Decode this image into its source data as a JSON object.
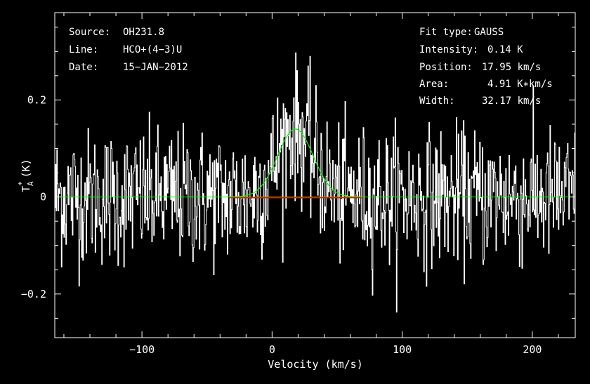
{
  "chart_data": {
    "type": "line",
    "title": "",
    "xlabel": "Velocity (km/s)",
    "ylabel_main": "T",
    "ylabel_sub": "A",
    "ylabel_sup": "*",
    "ylabel_unit": "(K)",
    "xlim": [
      -167,
      233
    ],
    "ylim": [
      -0.29,
      0.38
    ],
    "x_ticks": [
      -100,
      0,
      100,
      200
    ],
    "y_ticks": [
      -0.2,
      0,
      0.2
    ],
    "x_tick_labels": [
      "−100",
      "0",
      "100",
      "200"
    ],
    "y_tick_labels": [
      "−0.2",
      "0",
      "0.2"
    ],
    "grid": false,
    "info_left": [
      {
        "key": "Source:",
        "value": "OH231.8"
      },
      {
        "key": "Line:",
        "value": "HCO+(4−3)U"
      },
      {
        "key": "Date:",
        "value": "15−JAN−2012"
      }
    ],
    "info_right": [
      {
        "key": "Fit type:",
        "value": "GAUSS"
      },
      {
        "key": "Intensity:",
        "value": "0.14 K"
      },
      {
        "key": "Position:",
        "value": "17.95 km/s"
      },
      {
        "key": "Area:",
        "value": "4.91 K∗km/s"
      },
      {
        "key": "Width:",
        "value": "32.17 km/s"
      }
    ],
    "fit": {
      "amplitude": 0.14,
      "center": 17.95,
      "fwhm": 32.17
    },
    "fit_window": [
      -33,
      70
    ],
    "noise_rms": 0.07,
    "channel_width": 0.5,
    "colors": {
      "spectrum": "#ffffff",
      "fit": "#00ff00",
      "baseline": "#00ff00",
      "window": "#ff0000",
      "frame": "#ffffff"
    }
  }
}
